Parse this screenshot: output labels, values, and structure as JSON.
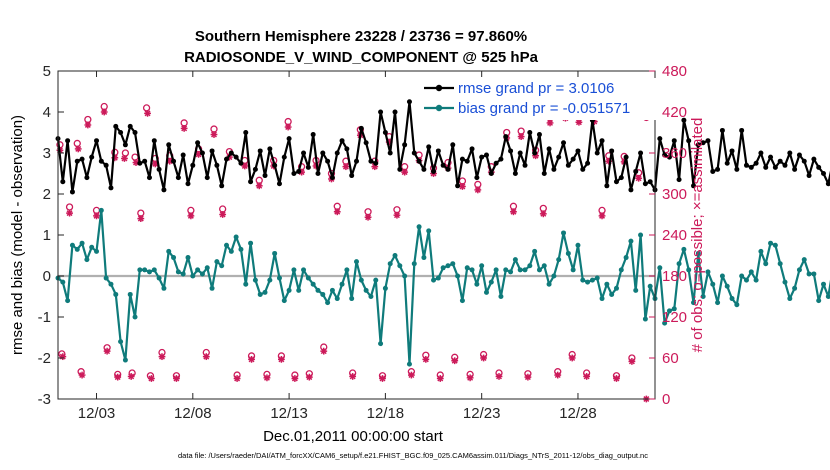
{
  "chart_data": {
    "type": "line",
    "title": "Southern Hemisphere 23228 / 23736 = 97.860%",
    "subtitle": "RADIOSONDE_V_WIND_COMPONENT @ 525 hPa",
    "xlabel": "Dec.01,2011 00:00:00 start",
    "ylabel_left": "rmse and bias (model - observation)",
    "ylabel_right": "# of obs: o=possible; ×=assimilated",
    "footer": "data file: /Users/raeder/DAI/ATM_forcXX/CAM6_setup/f.e21.FHIST_BGC.f09_025.CAM6assim.011/Diags_NTrS_2011-12/obs_diag_output.nc",
    "xlim": [
      1.0,
      32.0
    ],
    "ylim_left": [
      -3,
      5
    ],
    "ylim_right": [
      0,
      480
    ],
    "x_ticks": [
      3,
      8,
      13,
      18,
      23,
      28
    ],
    "x_tick_labels": [
      "12/03",
      "12/08",
      "12/13",
      "12/18",
      "12/23",
      "12/28"
    ],
    "y_ticks_left": [
      -3,
      -2,
      -1,
      0,
      1,
      2,
      3,
      4,
      5
    ],
    "y_tick_labels_left": [
      "-3",
      "-2",
      "-1",
      "0",
      "1",
      "2",
      "3",
      "4",
      "5"
    ],
    "y_ticks_right": [
      0,
      60,
      120,
      180,
      240,
      300,
      360,
      420,
      480
    ],
    "y_tick_labels_right": [
      "0",
      "60",
      "120",
      "180",
      "240",
      "300",
      "360",
      "420",
      "480"
    ],
    "zero_line": 0,
    "colors": {
      "rmse": "#000000",
      "bias": "#0f7b7b",
      "obs": "#cc1a5a",
      "legend_text": "#1a4fd6",
      "zero": "#b0b0b0"
    },
    "legend": [
      {
        "name": "rmse grand pr = 3.0106",
        "series": "rmse"
      },
      {
        "name": "bias grand pr = -0.051571",
        "series": "bias"
      }
    ],
    "series": [
      {
        "name": "rmse",
        "x_start": 1.0,
        "dx": 0.25,
        "values": [
          3.35,
          2.3,
          3.3,
          2.05,
          2.8,
          2.85,
          2.4,
          2.9,
          3.3,
          2.8,
          2.7,
          2.15,
          3.65,
          3.5,
          3.2,
          3.65,
          3.5,
          2.75,
          2.8,
          2.4,
          3.3,
          2.6,
          2.1,
          3.2,
          2.8,
          2.4,
          2.95,
          2.25,
          2.7,
          3.25,
          3.0,
          2.4,
          3.05,
          2.7,
          2.2,
          2.85,
          3.0,
          2.9,
          2.75,
          3.5,
          2.3,
          2.6,
          3.05,
          2.45,
          3.1,
          2.7,
          2.25,
          2.9,
          3.35,
          2.5,
          2.55,
          3.0,
          2.65,
          3.45,
          2.5,
          3.0,
          2.8,
          2.4,
          3.0,
          3.3,
          3.1,
          2.45,
          2.8,
          3.6,
          3.25,
          2.8,
          2.75,
          4.0,
          3.5,
          3.0,
          4.0,
          2.6,
          3.2,
          4.25,
          3.0,
          2.8,
          2.6,
          3.15,
          2.55,
          3.05,
          2.7,
          2.6,
          3.2,
          2.2,
          2.85,
          2.8,
          3.1,
          2.4,
          2.9,
          2.95,
          2.5,
          2.75,
          2.85,
          3.4,
          3.05,
          2.5,
          3.0,
          2.7,
          3.5,
          3.0,
          3.45,
          2.5,
          3.1,
          2.6,
          2.9,
          3.25,
          2.7,
          2.85,
          3.05,
          2.6,
          2.75,
          3.8,
          3.0,
          3.3,
          2.2,
          3.05,
          2.3,
          2.4,
          2.9,
          2.1,
          2.55,
          3.0,
          2.25,
          2.3,
          2.1,
          3.35,
          2.95,
          2.9,
          3.3,
          2.35,
          3.8,
          3.3,
          2.2,
          3.2,
          3.25,
          3.3,
          2.55,
          2.6,
          3.55,
          2.75,
          3.05,
          2.6,
          3.55,
          2.7,
          2.65,
          2.75,
          3.0,
          2.65,
          2.9,
          2.65,
          2.8,
          2.7,
          3.0,
          2.6,
          2.95,
          2.8,
          2.45,
          2.85,
          2.65,
          2.5,
          2.25,
          2.8,
          2.65,
          3.4,
          2.85,
          2.45,
          3.15,
          3.05,
          2.55,
          2.9,
          2.75,
          2.8,
          3.0,
          2.5,
          3.2,
          3.2,
          2.6,
          2.7,
          3.1,
          2.65,
          2.9,
          2.35
        ]
      },
      {
        "name": "bias",
        "x_start": 1.0,
        "dx": 0.25,
        "values": [
          -0.05,
          -0.15,
          -0.6,
          0.75,
          0.65,
          0.8,
          0.4,
          0.7,
          0.6,
          1.6,
          -0.05,
          -0.2,
          -0.45,
          -1.6,
          -2.05,
          -0.45,
          -1.0,
          0.15,
          0.15,
          0.1,
          0.15,
          -0.05,
          -0.3,
          0.6,
          0.45,
          0.1,
          0.05,
          0.45,
          0.0,
          0.15,
          0.05,
          0.2,
          -0.3,
          0.35,
          0.25,
          0.75,
          0.6,
          0.95,
          0.65,
          -0.2,
          0.8,
          -0.1,
          -0.45,
          -0.4,
          -0.1,
          0.55,
          -0.05,
          -0.6,
          -0.35,
          0.15,
          -0.35,
          0.15,
          -0.05,
          -0.2,
          -0.35,
          -0.45,
          -0.65,
          -0.35,
          -0.55,
          -0.2,
          0.15,
          -0.55,
          0.35,
          -0.1,
          -0.35,
          -0.5,
          -0.1,
          -1.65,
          -0.3,
          0.3,
          0.5,
          0.25,
          0.0,
          -2.15,
          0.3,
          1.2,
          0.45,
          1.1,
          -0.1,
          -0.05,
          0.2,
          0.25,
          0.3,
          0.0,
          -0.6,
          0.2,
          0.15,
          -0.2,
          0.25,
          -0.4,
          -0.15,
          0.15,
          -0.5,
          0.15,
          0.1,
          0.4,
          0.15,
          0.15,
          0.25,
          0.6,
          0.15,
          0.25,
          -0.2,
          0.0,
          0.4,
          1.05,
          0.55,
          0.15,
          0.75,
          -0.1,
          -0.15,
          -0.1,
          -0.05,
          -0.55,
          -0.2,
          -0.45,
          -0.3,
          0.15,
          0.45,
          0.85,
          -0.35,
          1.0,
          -1.05,
          -0.25,
          -0.55,
          0.2,
          -1.15,
          -0.85,
          -0.8,
          0.3,
          0.65,
          0.15,
          -0.65,
          0.55,
          -0.5,
          0.1,
          -0.2,
          -0.65,
          0.0,
          -0.25,
          -0.55,
          -0.7,
          0.0,
          -0.1,
          0.1,
          -0.1,
          0.6,
          0.3,
          0.8,
          0.75,
          0.3,
          -0.15,
          -0.55,
          -0.3,
          0.15,
          0.4,
          0.05,
          0.05,
          -0.6,
          -0.2,
          -0.5,
          0.2,
          -0.25,
          -0.55,
          0.0,
          -0.4,
          -0.5,
          -0.05,
          0.45,
          -0.35,
          -0.3,
          0.05,
          -0.05,
          -0.05,
          -1.45,
          0.0,
          0.15,
          0.45,
          -0.35,
          -0.45
        ]
      }
    ],
    "obs_possible": {
      "x": [
        1.1,
        1.2,
        1.6,
        2.0,
        2.2,
        2.55,
        3.0,
        3.4,
        3.55,
        3.95,
        4.1,
        4.5,
        4.85,
        5.0,
        5.3,
        5.6,
        5.8,
        6.05,
        6.4,
        6.8,
        7.15,
        7.55,
        7.9,
        8.3,
        8.7,
        9.1,
        9.55,
        9.9,
        10.3,
        10.7,
        11.05,
        11.45,
        11.85,
        12.2,
        12.6,
        12.95,
        13.3,
        13.65,
        14.05,
        14.4,
        14.8,
        15.2,
        15.5,
        15.95,
        16.3,
        16.7,
        17.1,
        17.45,
        17.85,
        18.2,
        18.6,
        19.0,
        19.35,
        19.75,
        20.1,
        20.5,
        20.85,
        21.25,
        21.6,
        22.0,
        22.4,
        22.8,
        23.1,
        23.5,
        23.9,
        24.3,
        24.65,
        25.05,
        25.4,
        25.8,
        26.2,
        26.55,
        26.95,
        27.35,
        27.7,
        28.05,
        28.45,
        28.85,
        29.25,
        29.6,
        30.0,
        30.4,
        30.8,
        31.15,
        31.55
      ],
      "values": [
        372,
        66,
        281,
        374,
        40,
        409,
        276,
        428,
        75,
        361,
        36,
        360,
        38,
        354,
        272,
        426,
        34,
        352,
        68,
        356,
        34,
        404,
        276,
        366,
        68,
        395,
        278,
        362,
        35,
        349,
        63,
        320,
        36,
        349,
        63,
        406,
        35,
        340,
        37,
        349,
        76,
        330,
        282,
        348,
        38,
        394,
        274,
        348,
        34,
        384,
        277,
        340,
        40,
        357,
        64,
        338,
        35,
        346,
        61,
        319,
        36,
        314,
        65,
        340,
        38,
        390,
        282,
        392,
        37,
        364,
        279,
        412,
        40,
        419,
        65,
        413,
        38,
        414,
        276,
        356,
        34,
        355,
        60,
        331,
        412
      ]
    },
    "obs_assimilated": {
      "x": [
        1.1,
        1.25,
        1.6,
        2.05,
        2.25,
        2.55,
        3.0,
        3.4,
        3.55,
        3.95,
        4.1,
        4.45,
        4.8,
        5.05,
        5.3,
        5.65,
        5.85,
        6.05,
        6.4,
        6.8,
        7.15,
        7.55,
        7.9,
        8.3,
        8.7,
        9.1,
        9.55,
        9.9,
        10.3,
        10.7,
        11.05,
        11.45,
        11.85,
        12.2,
        12.6,
        12.95,
        13.3,
        13.65,
        14.05,
        14.4,
        14.8,
        15.2,
        15.5,
        15.95,
        16.3,
        16.7,
        17.1,
        17.45,
        17.85,
        18.2,
        18.6,
        19.0,
        19.35,
        19.75,
        20.1,
        20.5,
        20.85,
        21.25,
        21.6,
        22.0,
        22.4,
        22.8,
        23.1,
        23.5,
        23.9,
        24.3,
        24.65,
        25.05,
        25.4,
        25.8,
        26.2,
        26.55,
        26.95,
        27.35,
        27.7,
        28.05,
        28.45,
        28.85,
        29.25,
        29.6,
        30.0,
        30.4,
        30.8,
        31.15,
        31.55
      ],
      "values": [
        364,
        62,
        272,
        366,
        35,
        401,
        268,
        420,
        70,
        353,
        32,
        352,
        33,
        346,
        264,
        418,
        30,
        344,
        62,
        348,
        30,
        396,
        268,
        358,
        62,
        387,
        270,
        354,
        30,
        341,
        58,
        312,
        31,
        341,
        58,
        398,
        30,
        332,
        32,
        341,
        70,
        322,
        274,
        340,
        33,
        386,
        266,
        340,
        30,
        376,
        269,
        332,
        35,
        349,
        58,
        330,
        30,
        338,
        56,
        311,
        31,
        306,
        60,
        332,
        33,
        382,
        274,
        384,
        32,
        356,
        271,
        404,
        35,
        411,
        60,
        405,
        33,
        406,
        268,
        348,
        30,
        347,
        55,
        323,
        0
      ]
    }
  }
}
